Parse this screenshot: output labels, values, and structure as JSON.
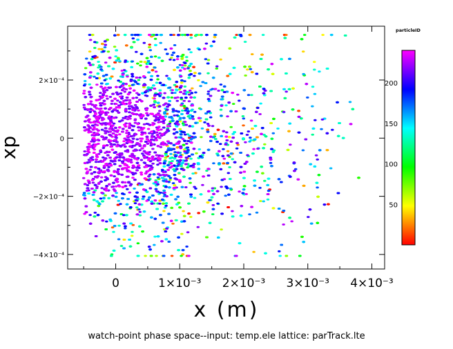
{
  "chart_data": {
    "type": "scatter",
    "xlabel": "x  (m)",
    "ylabel": "xp",
    "caption": "watch-point phase space--input: temp.ele  lattice: parTrack.lte",
    "xlim": [
      -0.00075,
      0.0042
    ],
    "ylim": [
      -0.00045,
      0.000385
    ],
    "x_ticks": [
      {
        "value": 0,
        "label": "0"
      },
      {
        "value": 0.001,
        "label": "1×10⁻³"
      },
      {
        "value": 0.002,
        "label": "2×10⁻³"
      },
      {
        "value": 0.003,
        "label": "3×10⁻³"
      },
      {
        "value": 0.004,
        "label": "4×10⁻³"
      }
    ],
    "y_ticks": [
      {
        "value": 0.0002,
        "label": "2×10⁻⁴"
      },
      {
        "value": 0,
        "label": "0"
      },
      {
        "value": -0.0002,
        "label": "−2×10⁻⁴"
      },
      {
        "value": -0.0004,
        "label": "−4×10⁻⁴"
      }
    ],
    "colorbar": {
      "title": "particleID",
      "range": [
        0,
        240
      ],
      "ticks": [
        {
          "value": 50,
          "label": "50"
        },
        {
          "value": 100,
          "label": "100"
        },
        {
          "value": 150,
          "label": "150"
        },
        {
          "value": 200,
          "label": "200"
        }
      ],
      "colors": [
        "#ff0000",
        "#ffff00",
        "#00ff00",
        "#00ffff",
        "#0000ff",
        "#ff00ff"
      ]
    },
    "distribution": {
      "x_core": [
        -0.0005,
        0.0005
      ],
      "x_max": 0.0039,
      "xp_core": [
        -0.00025,
        0.00028
      ],
      "point_count": 9000,
      "color_mode": "particleID"
    },
    "grid": false,
    "legend": "right"
  }
}
